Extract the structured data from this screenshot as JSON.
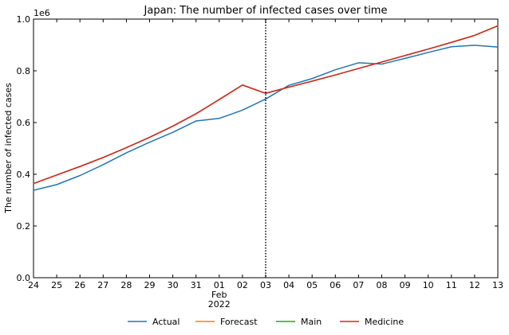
{
  "chart_data": {
    "type": "line",
    "title": "Japan: The number of infected cases over time",
    "xlabel": "",
    "ylabel": "The number of infected cases",
    "y_offset_label": "1e6",
    "ylim": [
      0,
      1000000
    ],
    "y_ticks": [
      0,
      200000,
      400000,
      600000,
      800000,
      1000000
    ],
    "y_tick_labels": [
      "0.0",
      "0.2",
      "0.4",
      "0.6",
      "0.8",
      "1.0"
    ],
    "categories": [
      "24",
      "25",
      "26",
      "27",
      "28",
      "29",
      "30",
      "31",
      "01",
      "02",
      "03",
      "04",
      "05",
      "06",
      "07",
      "08",
      "09",
      "10",
      "11",
      "12",
      "13"
    ],
    "month_label": {
      "index": 8,
      "lines": [
        "Feb",
        "2022"
      ]
    },
    "vline": {
      "index": 10,
      "style": "dotted",
      "color": "#000000"
    },
    "series": [
      {
        "name": "Actual",
        "color": "#1f77b4",
        "start_index": 0,
        "values": [
          338000,
          360000,
          395000,
          437000,
          483000,
          524000,
          562000,
          606000,
          616000,
          648000,
          691000,
          744000,
          770000,
          804000,
          831000,
          826000,
          848000,
          871000,
          893000,
          899000,
          892000
        ]
      },
      {
        "name": "Forecast",
        "color": "#ff7f0e",
        "start_index": 0,
        "values": [
          364000,
          397000,
          430000,
          465000,
          503000,
          543000,
          586000,
          634000,
          689000,
          745000,
          713000,
          737000,
          760000,
          784000,
          809000,
          834000,
          859000,
          884000,
          910000,
          937000,
          974000
        ]
      },
      {
        "name": "Main",
        "color": "#2ca02c",
        "start_index": 0,
        "values": [
          364000,
          397000,
          430000,
          465000,
          503000,
          543000,
          586000,
          634000,
          689000,
          745000,
          713000,
          737000,
          760000,
          784000,
          809000,
          834000,
          859000,
          884000,
          910000,
          937000,
          974000
        ]
      },
      {
        "name": "Medicine",
        "color": "#d62728",
        "start_index": 0,
        "values": [
          364000,
          397000,
          430000,
          465000,
          503000,
          543000,
          586000,
          634000,
          689000,
          745000,
          713000,
          737000,
          760000,
          784000,
          809000,
          834000,
          859000,
          884000,
          910000,
          937000,
          974000
        ]
      }
    ],
    "grid": false,
    "legend_position": "bottom"
  }
}
